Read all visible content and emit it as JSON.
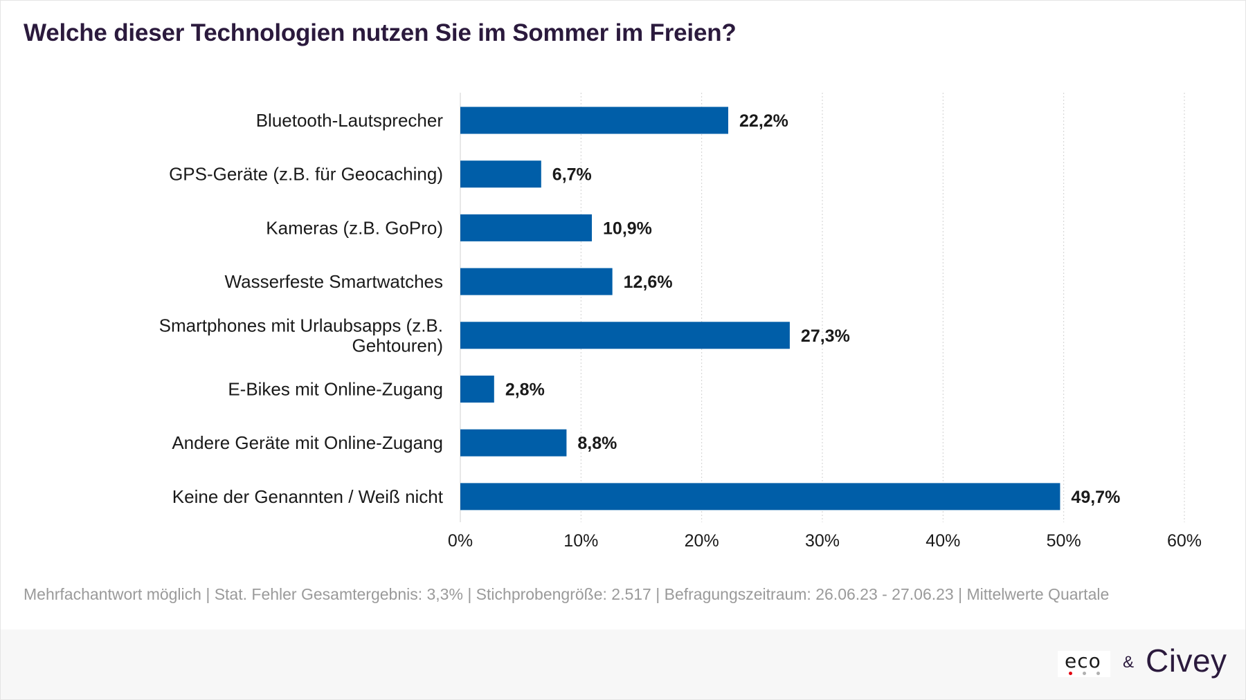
{
  "title": "Welche dieser Technologien nutzen Sie im Sommer im Freien?",
  "footnote": "Mehrfachantwort möglich | Stat. Fehler Gesamtergebnis: 3,3% | Stichprobengröße: 2.517 | Befragungszeitraum: 26.06.23 - 27.06.23 | Mittelwerte Quartale",
  "logos": {
    "eco": "eco",
    "ampersand": "&",
    "civey": "Civey",
    "eco_dot_colors": [
      "#e3000f",
      "#b0b0b0",
      "#b0b0b0"
    ]
  },
  "colors": {
    "bar": "#005ea8",
    "title": "#2b1a3d",
    "text": "#1a1a1a",
    "grid": "#cfcfcf",
    "footnote": "#9a9a9a"
  },
  "chart_data": {
    "type": "bar",
    "orientation": "horizontal",
    "categories": [
      [
        "Bluetooth-Lautsprecher"
      ],
      [
        "GPS-Geräte (z.B. für Geocaching)"
      ],
      [
        "Kameras (z.B. GoPro)"
      ],
      [
        "Wasserfeste Smartwatches"
      ],
      [
        "Smartphones mit Urlaubsapps (z.B.",
        "Gehtouren)"
      ],
      [
        "E-Bikes mit Online-Zugang"
      ],
      [
        "Andere Geräte mit Online-Zugang"
      ],
      [
        "Keine der Genannten / Weiß nicht"
      ]
    ],
    "values": [
      22.2,
      6.7,
      10.9,
      12.6,
      27.3,
      2.8,
      8.8,
      49.7
    ],
    "value_labels": [
      "22,2%",
      "6,7%",
      "10,9%",
      "12,6%",
      "27,3%",
      "2,8%",
      "8,8%",
      "49,7%"
    ],
    "xlim": [
      0,
      60
    ],
    "xticks": [
      0,
      10,
      20,
      30,
      40,
      50,
      60
    ],
    "xtick_labels": [
      "0%",
      "10%",
      "20%",
      "30%",
      "40%",
      "50%",
      "60%"
    ],
    "grid": true,
    "xlabel": "",
    "ylabel": ""
  }
}
